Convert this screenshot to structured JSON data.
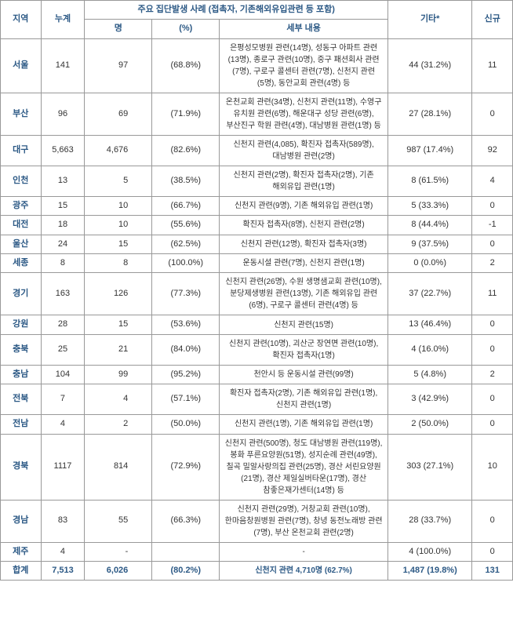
{
  "headers": {
    "region": "지역",
    "total": "누계",
    "cluster_group": "주요 집단발생 사례 (접촉자, 기존해외유입관련 등 포함)",
    "count": "명",
    "pct": "(%)",
    "detail": "세부 내용",
    "other": "기타*",
    "new": "신규"
  },
  "rows": [
    {
      "region": "서울",
      "total": "141",
      "count": "97",
      "pct": "(68.8%)",
      "detail": "은평성모병원 관련(14명), 성동구 아파트 관련(13명), 종로구 관련(10명), 중구 패션회사 관련(7명), 구로구 콜센터 관련(7명), 신천지 관련(5명), 동안교회 관련(4명) 등",
      "other": "44  (31.2%)",
      "new": "11"
    },
    {
      "region": "부산",
      "total": "96",
      "count": "69",
      "pct": "(71.9%)",
      "detail": "온천교회 관련(34명), 신천지 관련(11명), 수영구 유치원 관련(6명), 해운대구 성당 관련(6명), 부산진구 학원 관련(4명), 대남병원 관련(1명) 등",
      "other": "27  (28.1%)",
      "new": "0"
    },
    {
      "region": "대구",
      "total": "5,663",
      "count": "4,676",
      "pct": "(82.6%)",
      "detail": "신천지 관련(4,085), 확진자 접촉자(589명), 대남병원 관련(2명)",
      "other": "987  (17.4%)",
      "new": "92"
    },
    {
      "region": "인천",
      "total": "13",
      "count": "5",
      "pct": "(38.5%)",
      "detail": "신천지 관련(2명), 확진자 접촉자(2명), 기존 해외유입 관련(1명)",
      "other": "8  (61.5%)",
      "new": "4"
    },
    {
      "region": "광주",
      "total": "15",
      "count": "10",
      "pct": "(66.7%)",
      "detail": "신천지 관련(9명), 기존 해외유입 관련(1명)",
      "other": "5  (33.3%)",
      "new": "0"
    },
    {
      "region": "대전",
      "total": "18",
      "count": "10",
      "pct": "(55.6%)",
      "detail": "확진자 접촉자(8명), 신천지 관련(2명)",
      "other": "8  (44.4%)",
      "new": "-1"
    },
    {
      "region": "울산",
      "total": "24",
      "count": "15",
      "pct": "(62.5%)",
      "detail": "신천지 관련(12명), 확진자 접촉자(3명)",
      "other": "9  (37.5%)",
      "new": "0"
    },
    {
      "region": "세종",
      "total": "8",
      "count": "8",
      "pct": "(100.0%)",
      "detail": "운동시설 관련(7명), 신천지 관련(1명)",
      "other": "0  (0.0%)",
      "new": "2"
    },
    {
      "region": "경기",
      "total": "163",
      "count": "126",
      "pct": "(77.3%)",
      "detail": "신천지 관련(26명), 수원 생명샘교회 관련(10명), 분당제생병원 관련(13명), 기존 해외유입 관련(6명), 구로구 콜센터 관련(4명) 등",
      "other": "37  (22.7%)",
      "new": "11"
    },
    {
      "region": "강원",
      "total": "28",
      "count": "15",
      "pct": "(53.6%)",
      "detail": "신천지 관련(15명)",
      "other": "13  (46.4%)",
      "new": "0"
    },
    {
      "region": "충북",
      "total": "25",
      "count": "21",
      "pct": "(84.0%)",
      "detail": "신천지 관련(10명), 괴산군 장연면 관련(10명), 확진자 접촉자(1명)",
      "other": "4  (16.0%)",
      "new": "0"
    },
    {
      "region": "충남",
      "total": "104",
      "count": "99",
      "pct": "(95.2%)",
      "detail": "천안시 등 운동시설 관련(99명)",
      "other": "5  (4.8%)",
      "new": "2"
    },
    {
      "region": "전북",
      "total": "7",
      "count": "4",
      "pct": "(57.1%)",
      "detail": "확진자 접촉자(2명), 기존 해외유입 관련(1명), 신천지 관련(1명)",
      "other": "3  (42.9%)",
      "new": "0"
    },
    {
      "region": "전남",
      "total": "4",
      "count": "2",
      "pct": "(50.0%)",
      "detail": "신천지 관련(1명), 기존 해외유입 관련(1명)",
      "other": "2  (50.0%)",
      "new": "0"
    },
    {
      "region": "경북",
      "total": "1117",
      "count": "814",
      "pct": "(72.9%)",
      "detail": "신천지 관련(500명), 청도 대남병원 관련(119명), 봉화 푸른요양원(51명), 성지순례 관련(49명), 칠곡 밀알사랑의집 관련(25명), 경산 서린요양원(21명), 경산 제일실버타운(17명), 경산 참좋은재가센터(14명) 등",
      "other": "303  (27.1%)",
      "new": "10"
    },
    {
      "region": "경남",
      "total": "83",
      "count": "55",
      "pct": "(66.3%)",
      "detail": "신천지 관련(29명), 거창교회 관련(10명), 한마음창원병원 관련(7명), 창녕 동전노래방 관련(7명), 부산 온천교회 관련(2명)",
      "other": "28  (33.7%)",
      "new": "0"
    },
    {
      "region": "제주",
      "total": "4",
      "count": "-",
      "pct": "",
      "detail": "-",
      "other": "4 (100.0%)",
      "new": "0"
    }
  ],
  "total_row": {
    "region": "합계",
    "total": "7,513",
    "count": "6,026",
    "pct": "(80.2%)",
    "detail": "신천지 관련 4,710명 (62.7%)",
    "other": "1,487  (19.8%)",
    "new": "131"
  }
}
